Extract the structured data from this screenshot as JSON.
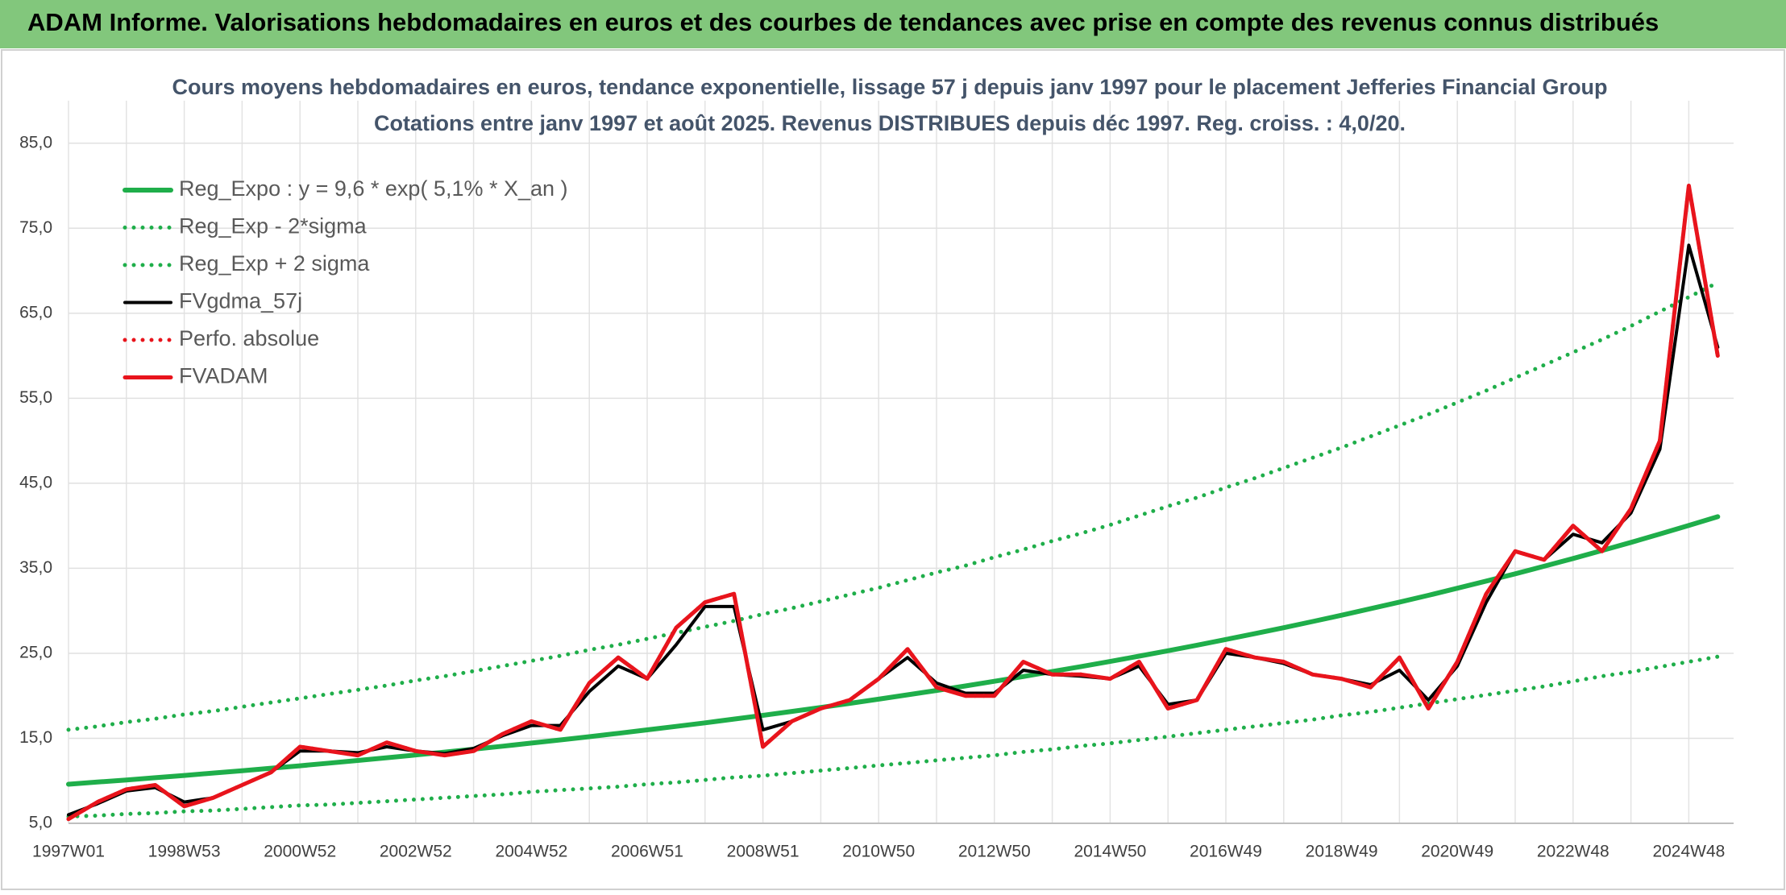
{
  "header": {
    "title": "ADAM Informe. Valorisations hebdomadaires en euros et des courbes de tendances avec prise en compte des revenus connus distribués"
  },
  "chart_data": {
    "type": "line",
    "title": "Cours moyens hebdomadaires en euros, tendance exponentielle, lissage 57 j depuis janv 1997 pour le placement Jefferies Financial Group",
    "subtitle": "Cotations entre janv 1997 et août 2025. Revenus DISTRIBUES depuis déc 1997. Reg. croiss. : 4,0/20.",
    "categories": [
      "1997W01",
      null,
      null,
      null,
      "1998W53",
      null,
      null,
      null,
      "2000W52",
      null,
      null,
      null,
      "2002W52",
      null,
      null,
      null,
      "2004W52",
      null,
      null,
      null,
      "2006W51",
      null,
      null,
      null,
      "2008W51",
      null,
      null,
      null,
      "2010W50",
      null,
      null,
      null,
      "2012W50",
      null,
      null,
      null,
      "2014W50",
      null,
      null,
      null,
      "2016W49",
      null,
      null,
      null,
      "2018W49",
      null,
      null,
      null,
      "2020W49",
      null,
      null,
      null,
      "2022W48",
      null,
      null,
      null,
      "2024W48",
      null
    ],
    "ylim": [
      5,
      90
    ],
    "yticks": [
      {
        "value": 5,
        "label": "5,0"
      },
      {
        "value": 15,
        "label": "15,0"
      },
      {
        "value": 25,
        "label": "25,0"
      },
      {
        "value": 35,
        "label": "35,0"
      },
      {
        "value": 45,
        "label": "45,0"
      },
      {
        "value": 55,
        "label": "55,0"
      },
      {
        "value": 65,
        "label": "65,0"
      },
      {
        "value": 75,
        "label": "75,0"
      },
      {
        "value": 85,
        "label": "85,0"
      }
    ],
    "grid": true,
    "series": [
      {
        "name": "Reg_Expo : y = 9,6 * exp( 5,1% *  X_an )",
        "color": "#1fae4a",
        "style": "solid",
        "values": [
          9.6,
          9.85,
          10.1,
          10.36,
          10.63,
          10.91,
          11.19,
          11.48,
          11.77,
          12.08,
          12.39,
          12.71,
          13.04,
          13.38,
          13.72,
          14.07,
          14.44,
          14.81,
          15.19,
          15.58,
          15.99,
          16.4,
          16.82,
          17.26,
          17.7,
          18.16,
          18.63,
          19.11,
          19.6,
          20.11,
          20.63,
          21.16,
          21.71,
          22.27,
          22.85,
          23.44,
          24.04,
          24.66,
          25.3,
          25.95,
          26.62,
          27.31,
          28.01,
          28.74,
          29.48,
          30.24,
          31.02,
          31.82,
          32.65,
          33.49,
          34.35,
          35.24,
          36.15,
          37.09,
          38.04,
          39.03,
          40.03,
          41.07
        ]
      },
      {
        "name": "Reg_Exp - 2*sigma",
        "color": "#1fae4a",
        "style": "dotted",
        "values": [
          5.8,
          5.9,
          6.1,
          6.2,
          6.4,
          6.5,
          6.7,
          6.9,
          7.1,
          7.2,
          7.4,
          7.6,
          7.8,
          8.0,
          8.2,
          8.4,
          8.7,
          8.9,
          9.1,
          9.3,
          9.6,
          9.8,
          10.1,
          10.4,
          10.6,
          10.9,
          11.2,
          11.5,
          11.8,
          12.1,
          12.4,
          12.7,
          13.0,
          13.4,
          13.7,
          14.1,
          14.4,
          14.8,
          15.2,
          15.6,
          16.0,
          16.4,
          16.8,
          17.2,
          17.7,
          18.1,
          18.6,
          19.1,
          19.6,
          20.1,
          20.6,
          21.1,
          21.7,
          22.3,
          22.8,
          23.4,
          24.0,
          24.6
        ]
      },
      {
        "name": "Reg_Exp + 2 sigma",
        "color": "#1fae4a",
        "style": "dotted",
        "values": [
          16.0,
          16.4,
          16.9,
          17.3,
          17.8,
          18.2,
          18.7,
          19.2,
          19.7,
          20.2,
          20.7,
          21.2,
          21.8,
          22.3,
          22.9,
          23.5,
          24.1,
          24.7,
          25.4,
          26.0,
          26.7,
          27.4,
          28.1,
          28.8,
          29.6,
          30.3,
          31.1,
          31.9,
          32.7,
          33.6,
          34.5,
          35.3,
          36.3,
          37.2,
          38.2,
          39.1,
          40.1,
          41.2,
          42.3,
          43.3,
          44.5,
          45.6,
          46.8,
          48.0,
          49.2,
          50.5,
          51.8,
          53.1,
          54.5,
          55.9,
          57.4,
          58.9,
          60.4,
          61.9,
          63.5,
          65.2,
          66.9,
          68.6
        ]
      },
      {
        "name": "FVgdma_57j",
        "color": "#000000",
        "style": "solid",
        "values": [
          6.0,
          7.3,
          8.8,
          9.2,
          7.5,
          8.0,
          9.5,
          11.0,
          13.5,
          13.5,
          13.3,
          14.0,
          13.5,
          13.2,
          13.8,
          15.3,
          16.5,
          16.5,
          20.5,
          23.5,
          22.0,
          26.0,
          30.5,
          30.5,
          16.0,
          17.0,
          18.5,
          19.5,
          22.0,
          24.5,
          21.5,
          20.3,
          20.3,
          23.0,
          22.5,
          22.3,
          22.0,
          23.5,
          19.0,
          19.5,
          25.0,
          24.5,
          23.8,
          22.5,
          22.0,
          21.3,
          23.0,
          19.5,
          23.5,
          31.0,
          37.0,
          36.0,
          39.0,
          38.0,
          41.5,
          49.0,
          73.0,
          61.0
        ]
      },
      {
        "name": "Perfo. absolue",
        "color": "#e8141c",
        "style": "dotted",
        "values": [
          5.5,
          7.5,
          9.0,
          9.5,
          7.0,
          8.0,
          9.5,
          11.0,
          14.0,
          13.5,
          13.0,
          14.5,
          13.5,
          13.0,
          13.5,
          15.5,
          17.0,
          16.0,
          21.5,
          24.5,
          22.0,
          28.0,
          31.0,
          32.0,
          14.0,
          17.0,
          18.5,
          19.5,
          22.0,
          25.5,
          21.0,
          20.0,
          20.0,
          24.0,
          22.5,
          22.5,
          22.0,
          24.0,
          18.5,
          19.5,
          25.5,
          24.5,
          24.0,
          22.5,
          22.0,
          21.0,
          24.5,
          18.5,
          24.0,
          32.0,
          37.0,
          36.0,
          40.0,
          37.0,
          42.0,
          50.0,
          80.0,
          60.0
        ]
      },
      {
        "name": "FVADAM",
        "color": "#e8141c",
        "style": "solid",
        "values": [
          5.5,
          7.5,
          9.0,
          9.5,
          7.0,
          8.0,
          9.5,
          11.0,
          14.0,
          13.5,
          13.0,
          14.5,
          13.5,
          13.0,
          13.5,
          15.5,
          17.0,
          16.0,
          21.5,
          24.5,
          22.0,
          28.0,
          31.0,
          32.0,
          14.0,
          17.0,
          18.5,
          19.5,
          22.0,
          25.5,
          21.0,
          20.0,
          20.0,
          24.0,
          22.5,
          22.5,
          22.0,
          24.0,
          18.5,
          19.5,
          25.5,
          24.5,
          24.0,
          22.5,
          22.0,
          21.0,
          24.5,
          18.5,
          24.0,
          32.0,
          37.0,
          36.0,
          40.0,
          37.0,
          42.0,
          50.0,
          80.0,
          60.0
        ]
      }
    ]
  }
}
